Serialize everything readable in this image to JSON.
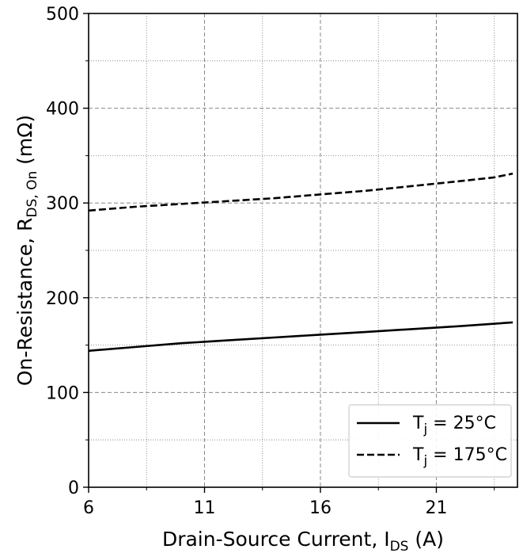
{
  "chart_data": {
    "type": "line",
    "title": "",
    "xlabel": {
      "main": "Drain-Source Current, I",
      "subscript": "DS",
      "suffix": " (A)"
    },
    "ylabel": {
      "main": "On-Resistance, R",
      "subscript": "DS, On",
      "suffix": " (mΩ)"
    },
    "xlim": [
      6,
      24.5
    ],
    "ylim": [
      0,
      500
    ],
    "x_major_ticks": [
      6,
      11,
      16,
      21
    ],
    "x_minor_ticks": [
      8.5,
      13.5,
      18.5,
      23.5
    ],
    "y_major_ticks": [
      0,
      100,
      200,
      300,
      400,
      500
    ],
    "y_minor_ticks": [
      50,
      150,
      250,
      350,
      450
    ],
    "grid": true,
    "legend_position": "bottom-right",
    "series": [
      {
        "name": "T",
        "name_subscript": "j",
        "name_suffix": " = 25°C",
        "style": "solid",
        "color": "#000000",
        "x": [
          6,
          8,
          10,
          12,
          14,
          16,
          18,
          20,
          22,
          24.3
        ],
        "y": [
          144,
          148,
          152,
          155,
          158,
          161,
          164,
          167,
          170,
          174
        ]
      },
      {
        "name": "T",
        "name_subscript": "j",
        "name_suffix": " = 175°C",
        "style": "dashed",
        "color": "#000000",
        "x": [
          6,
          8,
          10,
          12,
          14,
          16,
          18,
          20,
          22,
          23.5,
          24.3
        ],
        "y": [
          292,
          296,
          299,
          302,
          305,
          309,
          313,
          318,
          323,
          327,
          331
        ]
      }
    ]
  }
}
